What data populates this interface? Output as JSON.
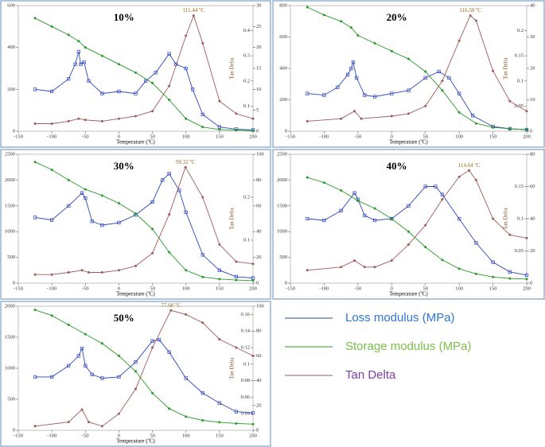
{
  "chart_data": [
    {
      "type": "line",
      "title": "10%",
      "annotation": "111.44 ºC",
      "xlabel": "Temperature (ºC)",
      "y3label": "Tan Delta",
      "xlim": [
        -150,
        200
      ],
      "xticks": [
        -150,
        -100,
        -50,
        0,
        50,
        100,
        150,
        200
      ],
      "ylim": [
        0,
        600
      ],
      "yticks": [
        0,
        200,
        400,
        600
      ],
      "y2lim": [
        0,
        30
      ],
      "y2ticks": [
        0,
        5,
        10,
        15,
        20,
        25,
        30
      ],
      "y3lim": [
        0,
        0.5
      ],
      "y3ticks": [
        0.1,
        0.2,
        0.3,
        0.4
      ],
      "series": [
        {
          "name": "Loss modulus (MPa)",
          "color": "#2e45b8",
          "axis": "y2",
          "x": [
            -125,
            -100,
            -75,
            -65,
            -60,
            -57,
            -52,
            -45,
            -25,
            0,
            25,
            40,
            55,
            75,
            85,
            100,
            110,
            125,
            150,
            175,
            200
          ],
          "values": [
            10,
            9.5,
            12.5,
            16,
            19,
            16,
            16.5,
            12,
            9,
            9.5,
            9,
            12,
            14,
            18.5,
            16,
            15,
            10,
            4,
            1,
            0.5,
            0.3
          ]
        },
        {
          "name": "Storage modulus (MPa)",
          "color": "#2a9a2a",
          "axis": "y",
          "x": [
            -125,
            -100,
            -75,
            -60,
            -50,
            -25,
            0,
            25,
            50,
            75,
            100,
            125,
            150,
            175,
            200
          ],
          "values": [
            540,
            500,
            460,
            430,
            400,
            360,
            320,
            280,
            230,
            150,
            60,
            20,
            8,
            5,
            3
          ]
        },
        {
          "name": "Tan Delta",
          "color": "#a05a5a",
          "axis": "y3",
          "x": [
            -125,
            -100,
            -75,
            -60,
            -50,
            -25,
            0,
            25,
            50,
            75,
            100,
            111.44,
            125,
            150,
            175,
            200
          ],
          "values": [
            0.03,
            0.03,
            0.04,
            0.05,
            0.045,
            0.04,
            0.05,
            0.06,
            0.08,
            0.18,
            0.38,
            0.46,
            0.35,
            0.12,
            0.07,
            0.05
          ]
        }
      ]
    },
    {
      "type": "line",
      "title": "20%",
      "annotation": "116.50 ºC",
      "xlabel": "Temperature (ºC)",
      "y3label": "Tan Delta",
      "xlim": [
        -150,
        200
      ],
      "xticks": [
        -150,
        -100,
        -50,
        0,
        50,
        100,
        150,
        200
      ],
      "ylim": [
        0,
        800
      ],
      "yticks": [
        0,
        200,
        400,
        600,
        800
      ],
      "y2lim": [
        0,
        40
      ],
      "y2ticks": [
        0,
        10,
        20,
        30,
        40
      ],
      "y3lim": [
        0,
        0.25
      ],
      "y3ticks": [
        0.05,
        0.1,
        0.15,
        0.2
      ],
      "series": [
        {
          "name": "Loss modulus (MPa)",
          "color": "#2e45b8",
          "axis": "y2",
          "x": [
            -125,
            -100,
            -80,
            -65,
            -60,
            -57,
            -52,
            -40,
            -25,
            0,
            25,
            50,
            70,
            85,
            100,
            120,
            150,
            175,
            200
          ],
          "values": [
            12,
            11.5,
            14,
            18,
            20,
            22,
            17,
            11.5,
            11,
            12,
            13,
            17,
            19,
            17,
            12,
            5,
            1.5,
            0.8,
            0.5
          ]
        },
        {
          "name": "Storage modulus (MPa)",
          "color": "#2a9a2a",
          "axis": "y",
          "x": [
            -125,
            -100,
            -75,
            -60,
            -50,
            -25,
            0,
            25,
            50,
            75,
            100,
            125,
            150,
            175,
            200
          ],
          "values": [
            790,
            740,
            700,
            660,
            610,
            560,
            510,
            460,
            380,
            260,
            120,
            50,
            25,
            15,
            10
          ]
        },
        {
          "name": "Tan Delta",
          "color": "#a05a5a",
          "axis": "y3",
          "x": [
            -125,
            -75,
            -55,
            -45,
            0,
            25,
            50,
            75,
            100,
            116.5,
            125,
            150,
            175,
            200
          ],
          "values": [
            0.02,
            0.025,
            0.04,
            0.025,
            0.03,
            0.035,
            0.05,
            0.1,
            0.18,
            0.23,
            0.22,
            0.12,
            0.06,
            0.04
          ]
        }
      ]
    },
    {
      "type": "line",
      "title": "30%",
      "annotation": "99.32 ºC",
      "xlabel": "Temperature (ºC)",
      "y3label": "Tan Delta",
      "xlim": [
        -150,
        200
      ],
      "xticks": [
        -150,
        -100,
        -50,
        0,
        50,
        100,
        150,
        200
      ],
      "ylim": [
        0,
        2500
      ],
      "yticks": [
        0,
        500,
        1000,
        1500,
        2000,
        2500
      ],
      "y2lim": [
        0,
        100
      ],
      "y2ticks": [
        0,
        20,
        40,
        60,
        80,
        100
      ],
      "y3lim": [
        0,
        0.3
      ],
      "y3ticks": [
        0.1,
        0.2
      ],
      "series": [
        {
          "name": "Loss modulus (MPa)",
          "color": "#2e45b8",
          "axis": "y2",
          "x": [
            -125,
            -100,
            -75,
            -55,
            -50,
            -40,
            -25,
            0,
            25,
            50,
            65,
            75,
            90,
            100,
            125,
            150,
            175,
            200
          ],
          "values": [
            51,
            49,
            60,
            70,
            66,
            48,
            45,
            47,
            53,
            63,
            80,
            85,
            72,
            55,
            22,
            10,
            5,
            4
          ]
        },
        {
          "name": "Storage modulus (MPa)",
          "color": "#2a9a2a",
          "axis": "y",
          "x": [
            -125,
            -100,
            -75,
            -50,
            -25,
            0,
            25,
            50,
            75,
            100,
            125,
            150,
            175,
            200
          ],
          "values": [
            2350,
            2200,
            2000,
            1820,
            1700,
            1550,
            1350,
            1050,
            600,
            250,
            120,
            80,
            60,
            50
          ]
        },
        {
          "name": "Tan Delta",
          "color": "#a05a5a",
          "axis": "y3",
          "x": [
            -125,
            -100,
            -75,
            -55,
            -45,
            -25,
            0,
            25,
            50,
            75,
            99.32,
            125,
            150,
            175,
            200
          ],
          "values": [
            0.02,
            0.02,
            0.025,
            0.03,
            0.025,
            0.025,
            0.03,
            0.04,
            0.07,
            0.16,
            0.27,
            0.2,
            0.09,
            0.05,
            0.045
          ]
        }
      ]
    },
    {
      "type": "line",
      "title": "40%",
      "annotation": "114.64 ºC",
      "xlabel": "Temperature (ºC)",
      "y3label": "Tan Delta",
      "xlim": [
        -150,
        200
      ],
      "xticks": [
        -150,
        -100,
        -50,
        0,
        50,
        100,
        150,
        200
      ],
      "ylim": [
        0,
        2500
      ],
      "yticks": [
        0,
        500,
        1000,
        1500,
        2000,
        2500
      ],
      "y2lim": [
        0,
        80
      ],
      "y2ticks": [
        0,
        20,
        40,
        60,
        80
      ],
      "y3lim": [
        0,
        0.2
      ],
      "y3ticks": [
        0.05,
        0.1,
        0.15
      ],
      "series": [
        {
          "name": "Loss modulus (MPa)",
          "color": "#2e45b8",
          "axis": "y2",
          "x": [
            -125,
            -100,
            -75,
            -55,
            -50,
            -40,
            -25,
            0,
            25,
            50,
            65,
            75,
            100,
            125,
            150,
            175,
            200
          ],
          "values": [
            40,
            39,
            45,
            56,
            52,
            42,
            39,
            40,
            48,
            60,
            60,
            55,
            40,
            25,
            13,
            7,
            5
          ]
        },
        {
          "name": "Storage modulus (MPa)",
          "color": "#2a9a2a",
          "axis": "y",
          "x": [
            -125,
            -100,
            -75,
            -50,
            -25,
            0,
            25,
            50,
            75,
            100,
            125,
            150,
            175,
            200
          ],
          "values": [
            2050,
            1950,
            1800,
            1600,
            1450,
            1250,
            1000,
            700,
            450,
            280,
            180,
            120,
            90,
            80
          ]
        },
        {
          "name": "Tan Delta",
          "color": "#a05a5a",
          "axis": "y3",
          "x": [
            -125,
            -75,
            -55,
            -40,
            -25,
            0,
            25,
            50,
            75,
            100,
            114.64,
            125,
            150,
            175,
            200
          ],
          "values": [
            0.02,
            0.025,
            0.035,
            0.025,
            0.025,
            0.035,
            0.06,
            0.09,
            0.13,
            0.165,
            0.175,
            0.16,
            0.1,
            0.075,
            0.07
          ]
        }
      ]
    },
    {
      "type": "line",
      "title": "50%",
      "annotation": "77.60 ºC",
      "xlabel": "Temperature (ºC)",
      "y3label": "Tan Delta",
      "xlim": [
        -150,
        200
      ],
      "xticks": [
        -150,
        -100,
        -50,
        0,
        50,
        100,
        150,
        200
      ],
      "ylim": [
        0,
        2000
      ],
      "yticks": [
        0,
        500,
        1000,
        1500,
        2000
      ],
      "y2lim": [
        0,
        100
      ],
      "y2ticks": [
        0,
        20,
        40,
        60,
        80,
        100
      ],
      "y3lim": [
        0.02,
        0.17
      ],
      "y3ticks": [
        0.04,
        0.06,
        0.08,
        0.1,
        0.12,
        0.14,
        0.16
      ],
      "series": [
        {
          "name": "Loss modulus (MPa)",
          "color": "#2e45b8",
          "axis": "y2",
          "x": [
            -125,
            -100,
            -75,
            -60,
            -55,
            -50,
            -40,
            -25,
            0,
            25,
            50,
            60,
            75,
            100,
            125,
            150,
            175,
            200
          ],
          "values": [
            43,
            43,
            52,
            60,
            66,
            52,
            45,
            42,
            43,
            55,
            72,
            73,
            63,
            42,
            30,
            22,
            15,
            14
          ]
        },
        {
          "name": "Storage modulus (MPa)",
          "color": "#2a9a2a",
          "axis": "y",
          "x": [
            -125,
            -100,
            -75,
            -50,
            -25,
            0,
            25,
            50,
            75,
            100,
            125,
            150,
            175,
            200
          ],
          "values": [
            1940,
            1850,
            1700,
            1550,
            1400,
            1200,
            950,
            600,
            350,
            220,
            160,
            130,
            110,
            100
          ]
        },
        {
          "name": "Tan Delta",
          "color": "#a05a5a",
          "axis": "y3",
          "x": [
            -125,
            -75,
            -55,
            -45,
            -25,
            0,
            25,
            50,
            77.6,
            100,
            125,
            150,
            175,
            200
          ],
          "values": [
            0.025,
            0.03,
            0.045,
            0.03,
            0.025,
            0.04,
            0.07,
            0.12,
            0.165,
            0.16,
            0.15,
            0.13,
            0.12,
            0.11
          ]
        }
      ]
    }
  ]
}
